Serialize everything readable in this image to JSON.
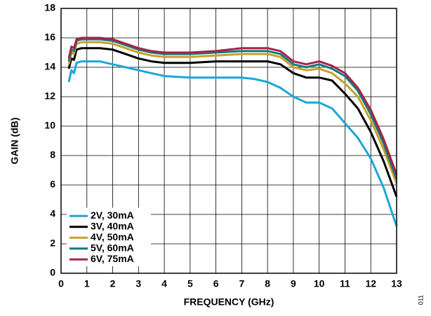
{
  "chart_data": {
    "type": "line",
    "x_label": "FREQUENCY (GHz)",
    "y_label": "GAIN (dB)",
    "note": "011",
    "x": [
      0.3,
      0.4,
      0.5,
      0.6,
      0.8,
      1,
      1.5,
      2,
      2.5,
      3,
      3.5,
      4,
      5,
      6,
      7,
      7.5,
      8,
      8.5,
      9,
      9.5,
      10,
      10.5,
      11,
      11.5,
      12,
      12.5,
      13
    ],
    "series": [
      {
        "name": "2V, 30mA",
        "color": "#1aa7d8",
        "values": [
          13.0,
          13.8,
          13.6,
          14.3,
          14.4,
          14.4,
          14.4,
          14.2,
          14.0,
          13.8,
          13.6,
          13.4,
          13.3,
          13.3,
          13.3,
          13.2,
          13.0,
          12.6,
          12.0,
          11.6,
          11.6,
          11.2,
          10.2,
          9.2,
          7.8,
          5.8,
          3.2
        ]
      },
      {
        "name": "3V, 40mA",
        "color": "#000000",
        "values": [
          13.9,
          14.6,
          14.5,
          15.2,
          15.3,
          15.3,
          15.3,
          15.2,
          14.9,
          14.6,
          14.4,
          14.3,
          14.3,
          14.4,
          14.4,
          14.4,
          14.4,
          14.2,
          13.6,
          13.3,
          13.3,
          13.1,
          12.2,
          11.2,
          9.6,
          7.6,
          5.2
        ]
      },
      {
        "name": "4V, 50mA",
        "color": "#c8a02c",
        "values": [
          14.2,
          15.0,
          14.9,
          15.6,
          15.7,
          15.7,
          15.7,
          15.6,
          15.3,
          15.0,
          14.8,
          14.7,
          14.7,
          14.8,
          14.9,
          14.9,
          14.9,
          14.7,
          14.0,
          13.8,
          13.9,
          13.6,
          12.9,
          12.0,
          10.4,
          8.4,
          6.1
        ]
      },
      {
        "name": "5V, 60mA",
        "color": "#137a7a",
        "values": [
          14.4,
          15.2,
          15.1,
          15.8,
          15.9,
          15.9,
          15.9,
          15.8,
          15.5,
          15.2,
          15.0,
          14.9,
          14.9,
          15.0,
          15.1,
          15.1,
          15.1,
          14.9,
          14.2,
          14.0,
          14.2,
          13.9,
          13.4,
          12.4,
          10.8,
          8.8,
          6.4
        ]
      },
      {
        "name": "6V, 75mA",
        "color": "#a5234b",
        "values": [
          14.6,
          15.4,
          15.3,
          15.9,
          16.0,
          16.0,
          16.0,
          15.9,
          15.6,
          15.3,
          15.1,
          15.0,
          15.0,
          15.1,
          15.3,
          15.3,
          15.3,
          15.1,
          14.4,
          14.2,
          14.4,
          14.1,
          13.6,
          12.6,
          11.1,
          9.1,
          6.7
        ]
      }
    ],
    "xlim": [
      0,
      13
    ],
    "xticks": [
      0,
      1,
      2,
      3,
      4,
      5,
      6,
      7,
      8,
      9,
      10,
      11,
      12,
      13
    ],
    "ylim": [
      0,
      18
    ],
    "yticks": [
      0,
      2,
      4,
      6,
      8,
      10,
      12,
      14,
      16,
      18
    ],
    "grid": true,
    "legend": "lower-left"
  }
}
